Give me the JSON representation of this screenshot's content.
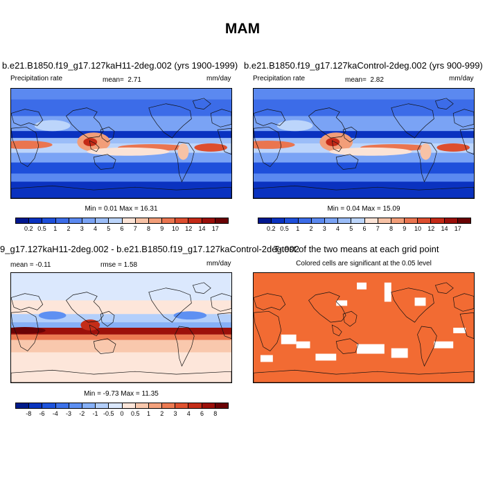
{
  "title": "MAM",
  "panels": [
    {
      "id": "test",
      "title": "b.e21.B1850.f19_g17.127kaH11-2deg.002 (yrs 1900-1999)",
      "left_label": "Precipitation rate",
      "mean_label": "mean=",
      "mean_value": "2.71",
      "units": "mm/day",
      "minmax": "Min =  0.01 Max =  16.31",
      "colorbar_labels": [
        "0.2",
        "0.5",
        "1",
        "2",
        "3",
        "4",
        "5",
        "6",
        "7",
        "8",
        "9",
        "10",
        "12",
        "14",
        "17"
      ]
    },
    {
      "id": "control",
      "title": "b.e21.B1850.f19_g17.127kaControl-2deg.002 (yrs 900-999)",
      "left_label": "Precipitation rate",
      "mean_label": "mean=",
      "mean_value": "2.82",
      "units": "mm/day",
      "minmax": "Min =  0.04 Max =  15.09",
      "colorbar_labels": [
        "0.2",
        "0.5",
        "1",
        "2",
        "3",
        "4",
        "5",
        "6",
        "7",
        "8",
        "9",
        "10",
        "12",
        "14",
        "17"
      ]
    },
    {
      "id": "diff",
      "title": "9_g17.127kaH11-2deg.002 - b.e21.B1850.f19_g17.127kaControl-2deg.002",
      "left_label": "mean =  -0.11",
      "rmse_label": "rmse =   1.58",
      "units": "mm/day",
      "minmax": "Min =  -9.73 Max =  11.35",
      "colorbar_labels": [
        "-8",
        "-6",
        "-4",
        "-3",
        "-2",
        "-1",
        "-0.5",
        "0",
        "0.5",
        "1",
        "2",
        "3",
        "4",
        "6",
        "8"
      ]
    },
    {
      "id": "ttest",
      "title": "T-test of the two means at each grid point",
      "subtitle": "Colored cells are significant at the 0.05 level"
    }
  ],
  "colors": {
    "abs_scale": [
      "#00178f",
      "#0a32c0",
      "#1e4fdb",
      "#3c6ce8",
      "#5b89f0",
      "#7aa3f5",
      "#9bbdf8",
      "#bcd5fb",
      "#fbe3d6",
      "#f7c2a6",
      "#f29e79",
      "#ea7550",
      "#dd4e2f",
      "#c42a17",
      "#9a0f0a",
      "#6a0204"
    ],
    "diff_scale": [
      "#001b8a",
      "#0a35bf",
      "#1e54dc",
      "#3d72e9",
      "#5e90f2",
      "#86b0f7",
      "#b3cffb",
      "#dbe8fd",
      "#fde6da",
      "#f9c8ad",
      "#f4a27d",
      "#ec7a52",
      "#df5230",
      "#c42d18",
      "#9c100a",
      "#6b0205"
    ],
    "significance": "#f26b33"
  }
}
